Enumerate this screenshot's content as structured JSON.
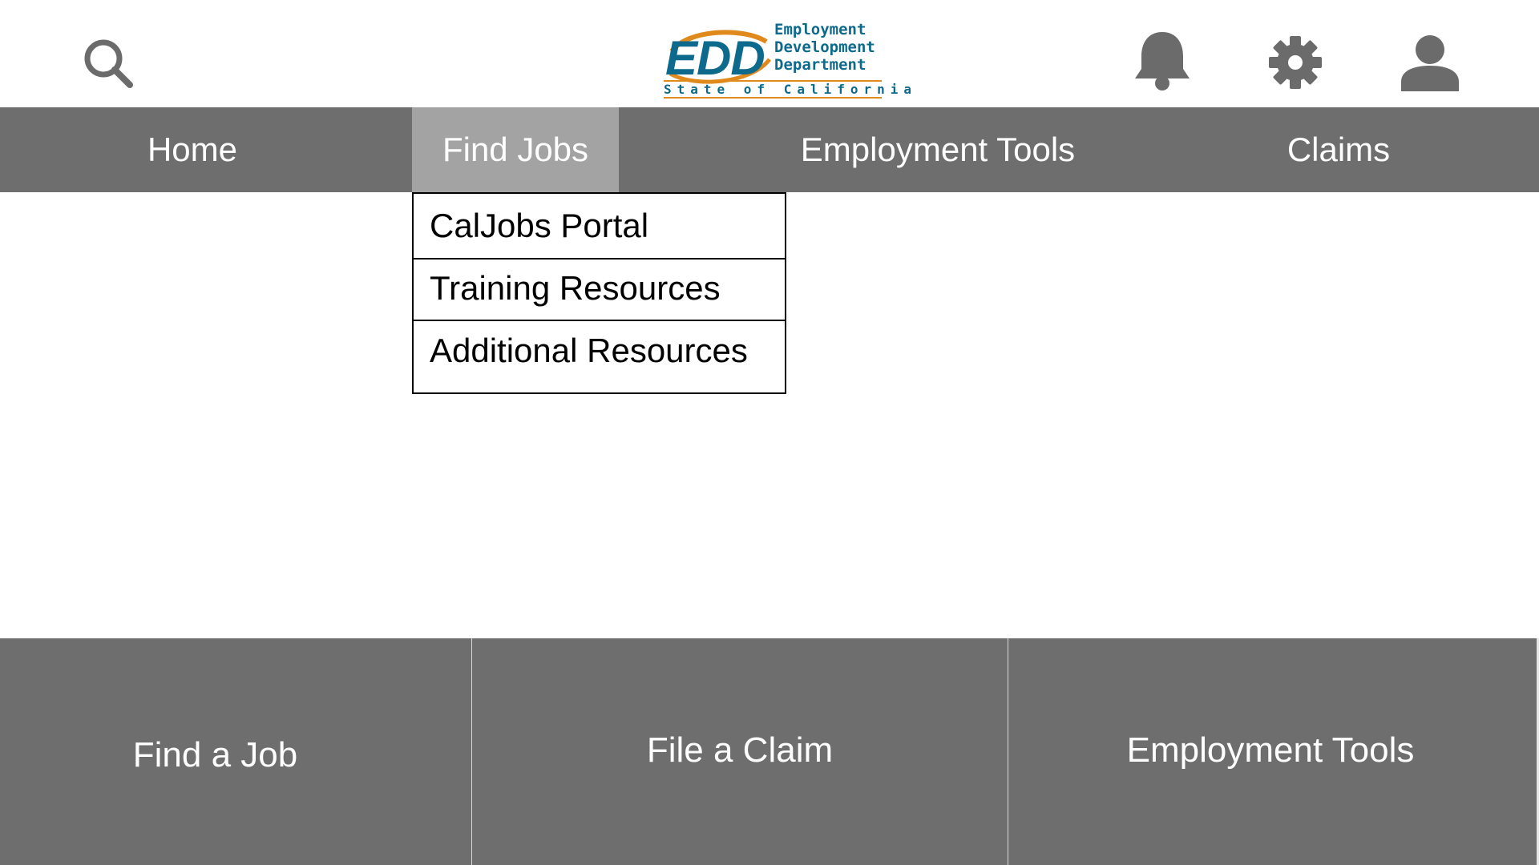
{
  "header": {
    "search_icon": "search-icon",
    "notification_icon": "bell-icon",
    "settings_icon": "gear-icon",
    "account_icon": "user-icon"
  },
  "logo": {
    "mark": "EDD",
    "line1": "Employment",
    "line2": "Development",
    "line3": "Department",
    "state": "State of California",
    "colors": {
      "blue": "#0e6a8c",
      "orange": "#e08a1e"
    }
  },
  "nav": {
    "home": "Home",
    "find_jobs": "Find Jobs",
    "employment_tools": "Employment Tools",
    "claims": "Claims",
    "active": "Find Jobs"
  },
  "dropdown": {
    "items": [
      "CalJobs Portal",
      "Training Resources",
      "Additional Resources"
    ]
  },
  "tiles": {
    "find_job": "Find a Job",
    "file_claim": "File a Claim",
    "employment_tools": "Employment Tools"
  },
  "colors": {
    "nav_bg": "#6e6e6e",
    "nav_active_bg": "#a3a3a3",
    "icon": "#6b6b6b"
  }
}
